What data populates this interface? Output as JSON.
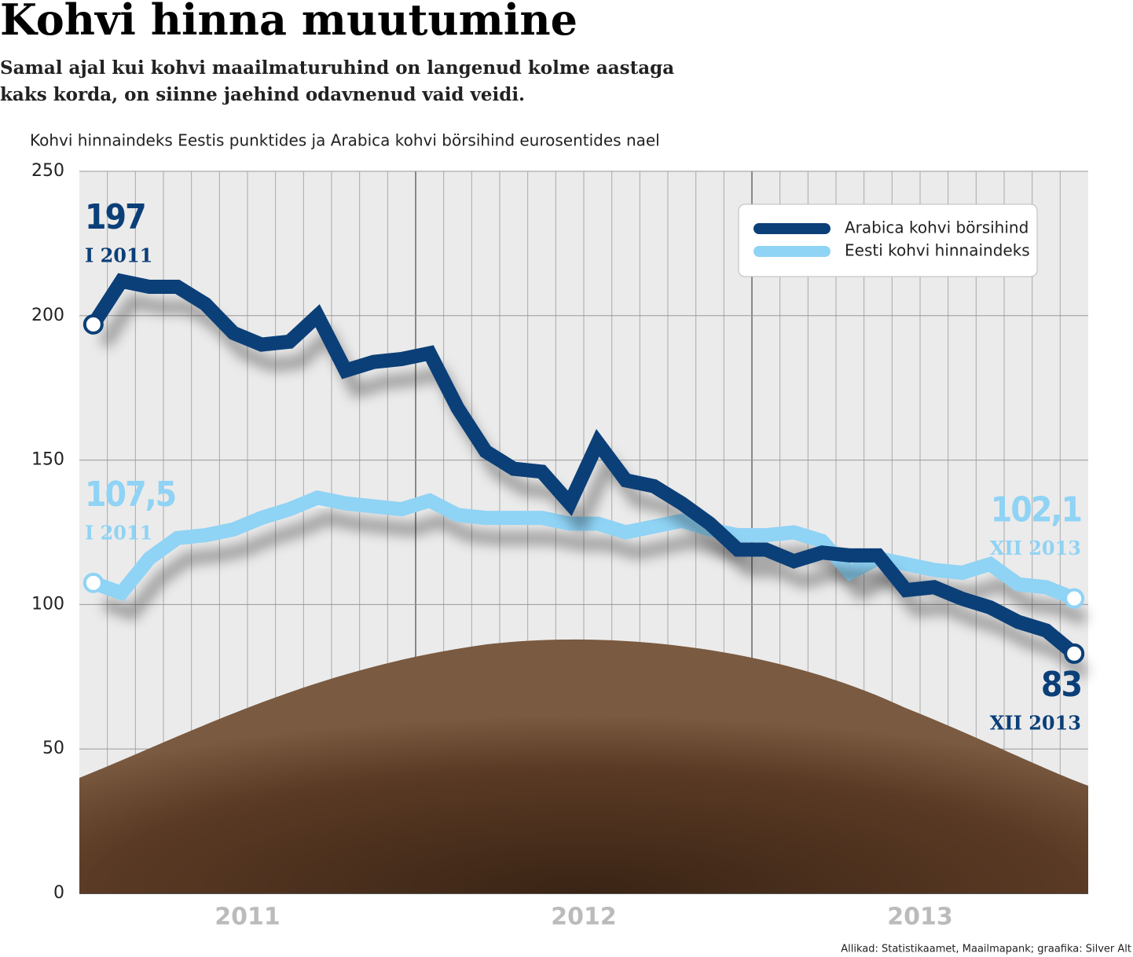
{
  "chart_data": {
    "type": "line",
    "title": "Kohvi hinna muutumine",
    "subtitle": "Samal ajal kui kohvi maailmaturuhind on langenud kolme aastaga kaks korda, on siinne jaehind odavnenud vaid veidi.",
    "axis_title": "Kohvi hinnaindeks Eestis punktides ja Arabica kohvi börsihind eurosentides nael",
    "source": "Allikad: Statistikaamet, Maailmapank; graafika: Silver Alt",
    "categories": [
      null,
      null,
      null,
      null,
      null,
      null,
      null,
      null,
      null,
      null,
      null,
      null,
      null,
      null,
      null,
      null,
      null,
      null,
      null,
      null,
      null,
      null,
      null,
      null,
      null,
      null,
      null,
      null,
      null,
      null,
      null,
      null,
      null,
      null,
      null,
      null
    ],
    "year_labels": [
      "2011",
      "2012",
      "2013"
    ],
    "ylim": [
      0,
      250
    ],
    "yticks": [
      0,
      50,
      100,
      150,
      200,
      250
    ],
    "grid": true,
    "legend": "top-right",
    "series": [
      {
        "name": "Arabica kohvi börsihind",
        "color": "#0b3f78",
        "values": [
          197,
          212,
          210,
          210,
          204,
          194,
          190,
          191,
          200,
          181,
          184,
          185,
          187,
          168,
          153,
          147,
          146,
          135,
          156,
          143,
          141,
          135,
          128,
          119,
          119,
          115,
          118,
          117,
          117,
          105,
          106,
          102,
          99,
          94,
          91,
          83
        ],
        "value_labels": [
          "197",
          null,
          null,
          null,
          null,
          null,
          null,
          null,
          null,
          null,
          null,
          null,
          null,
          null,
          null,
          null,
          null,
          null,
          null,
          null,
          null,
          null,
          null,
          null,
          null,
          null,
          null,
          null,
          null,
          null,
          null,
          null,
          null,
          null,
          null,
          "83"
        ],
        "date_labels": [
          "I 2011",
          null,
          null,
          null,
          null,
          null,
          null,
          null,
          null,
          null,
          null,
          null,
          null,
          null,
          null,
          null,
          null,
          null,
          null,
          null,
          null,
          null,
          null,
          null,
          null,
          null,
          null,
          null,
          null,
          null,
          null,
          null,
          null,
          null,
          null,
          "XII 2013"
        ]
      },
      {
        "name": "Eesti kohvi hinnaindeks",
        "color": "#8fd3f5",
        "values": [
          107.5,
          104,
          116,
          123,
          124,
          126,
          130,
          133,
          137,
          135,
          134,
          133,
          136,
          131,
          130,
          130,
          130,
          128,
          128,
          125,
          127,
          129,
          126,
          124,
          124,
          125,
          122,
          111,
          116,
          114,
          112,
          111,
          114,
          107,
          106,
          102.1
        ],
        "value_labels": [
          "107,5",
          null,
          null,
          null,
          null,
          null,
          null,
          null,
          null,
          null,
          null,
          null,
          null,
          null,
          null,
          null,
          null,
          null,
          null,
          null,
          null,
          null,
          null,
          null,
          null,
          null,
          null,
          null,
          null,
          null,
          null,
          null,
          null,
          null,
          null,
          "102,1"
        ],
        "date_labels": [
          "I 2011",
          null,
          null,
          null,
          null,
          null,
          null,
          null,
          null,
          null,
          null,
          null,
          null,
          null,
          null,
          null,
          null,
          null,
          null,
          null,
          null,
          null,
          null,
          null,
          null,
          null,
          null,
          null,
          null,
          null,
          null,
          null,
          null,
          null,
          null,
          "XII 2013"
        ]
      }
    ]
  }
}
